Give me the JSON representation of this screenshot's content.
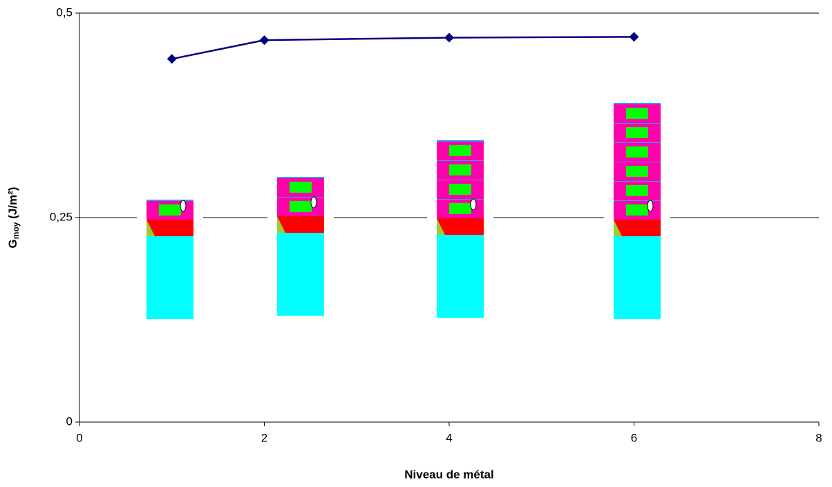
{
  "chart_data": {
    "type": "line",
    "xlabel": "Niveau de métal",
    "ylabel": {
      "main": "G",
      "sub": "moy",
      "unit": " (J/m²)"
    },
    "x": [
      1,
      2,
      4,
      6
    ],
    "series": [
      {
        "color": "#000080",
        "values": [
          0.444,
          0.467,
          0.47,
          0.471
        ]
      }
    ],
    "xlim": [
      0,
      8
    ],
    "xticks": [
      0,
      2,
      4,
      6,
      8
    ],
    "ylim": [
      0,
      0.5
    ],
    "yticks": [
      0,
      {
        "value": 0.25,
        "label": "0,25"
      },
      {
        "value": 0.5,
        "label": "0,5"
      }
    ],
    "grid": true
  }
}
